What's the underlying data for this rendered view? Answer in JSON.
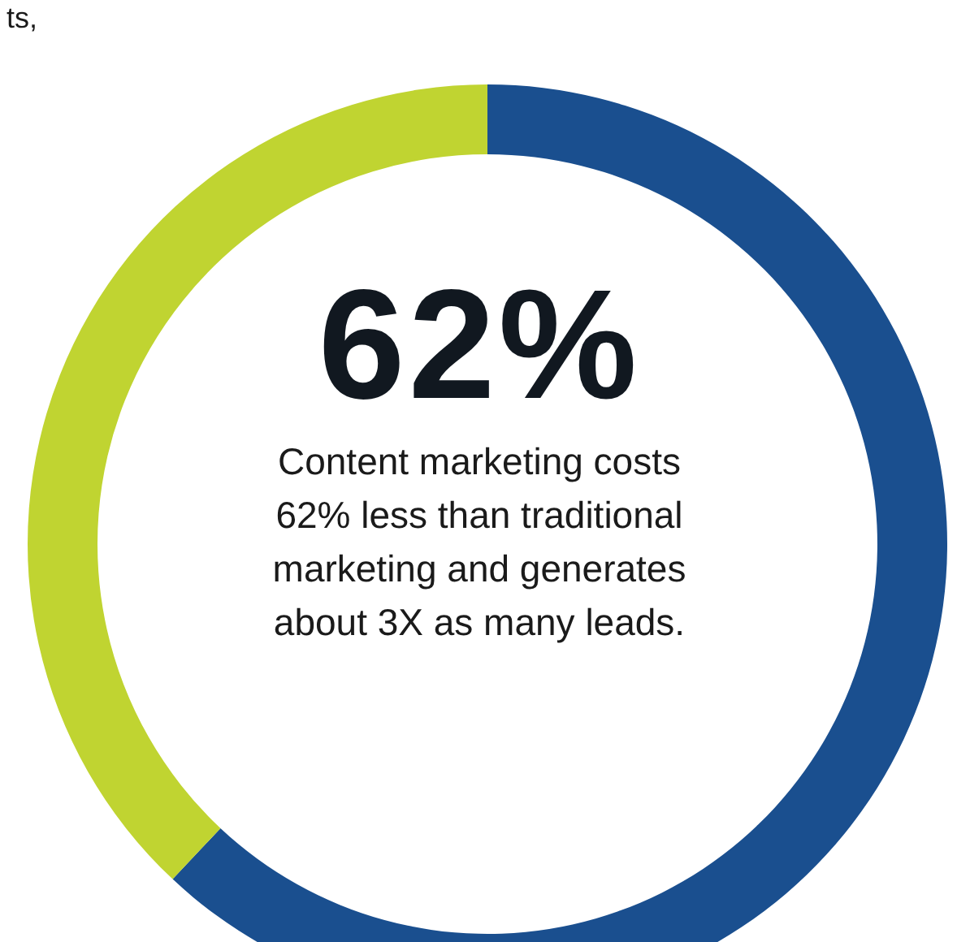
{
  "chart_data": {
    "type": "donut",
    "title": "62%",
    "annotations": [
      "Content marketing costs 62% less than traditional marketing and generates about 3X as many leads.",
      "ts,"
    ],
    "categories": [
      null,
      null
    ],
    "values": [
      62,
      38
    ],
    "colors": [
      "#1a4f8f",
      "#c0d431"
    ]
  }
}
